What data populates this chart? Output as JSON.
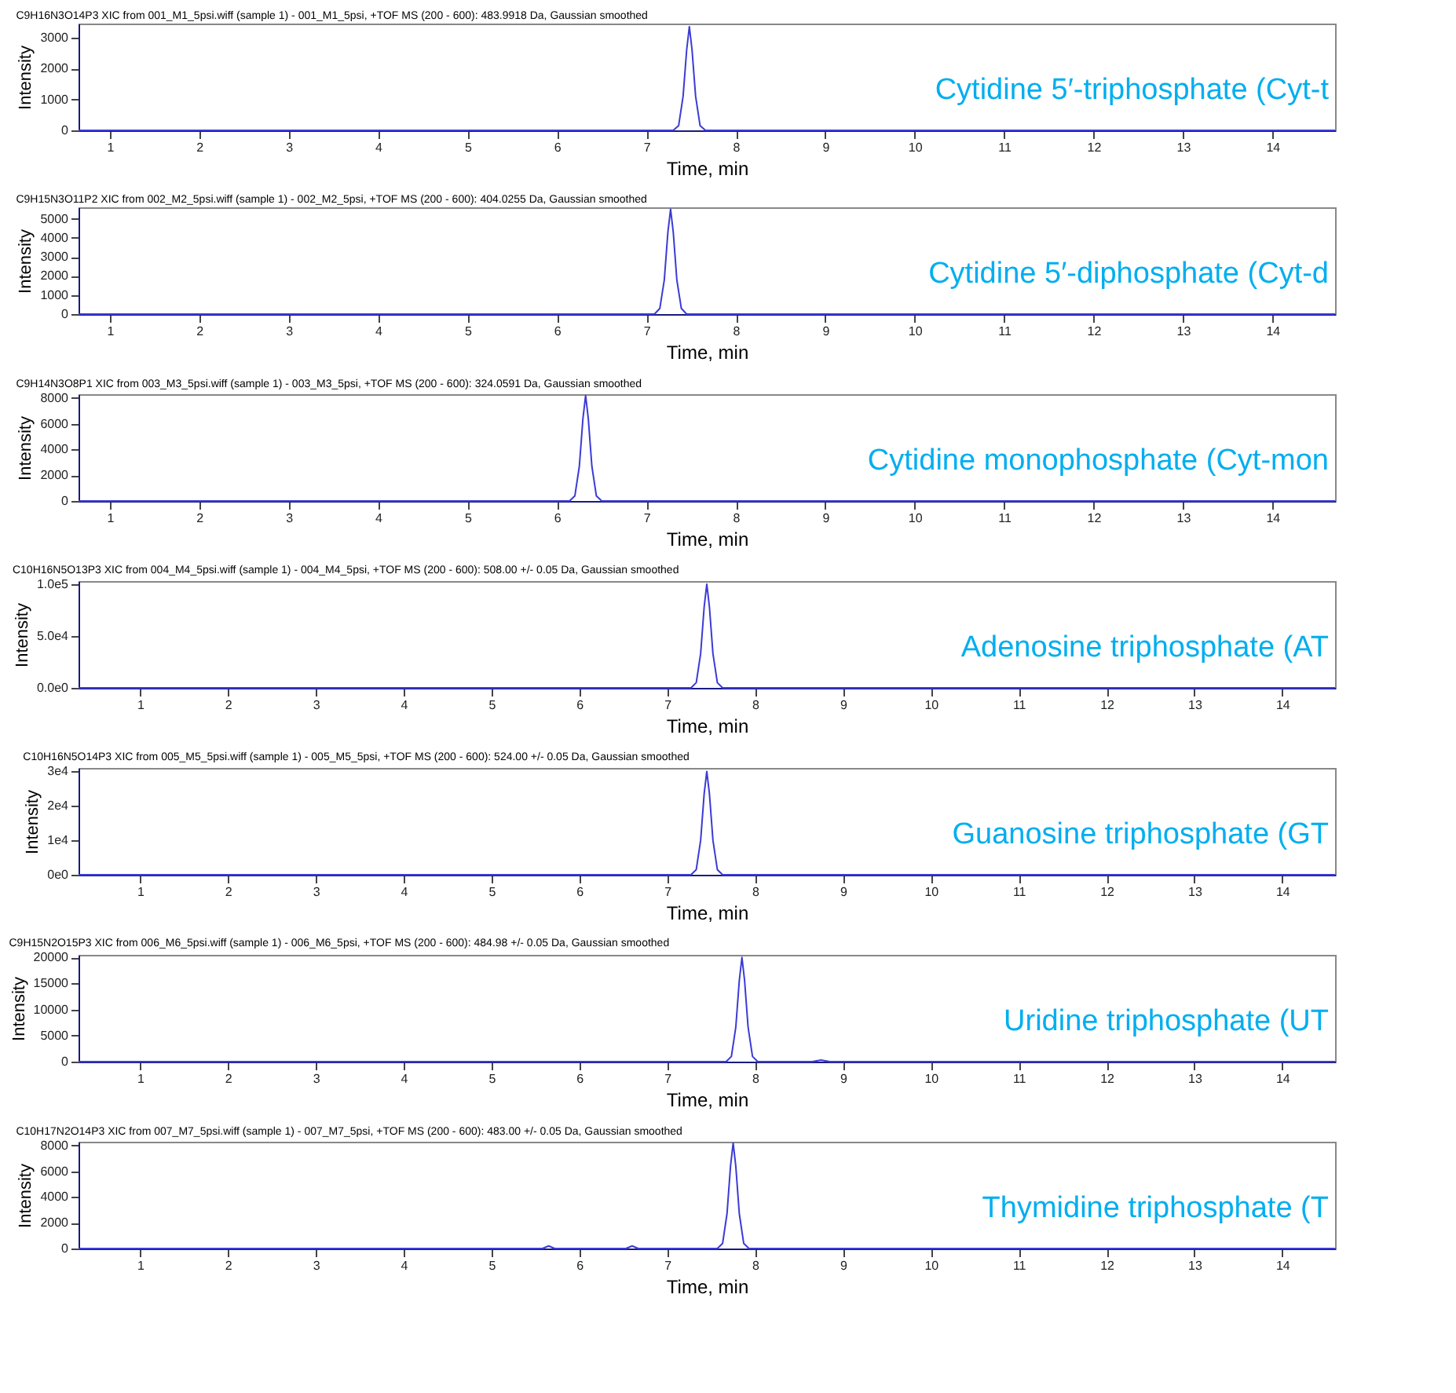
{
  "chart_data": [
    {
      "type": "line",
      "title": "C9H16N3O14P3 XIC from 001_M1_5psi.wiff (sample 1) - 001_M1_5psi, +TOF MS (200 - 600): 483.9918 Da, Gaussian smoothed",
      "xlabel": "Time, min",
      "ylabel": "Intensity",
      "color": "#3b3bd6",
      "x": [
        0.65,
        7.3,
        7.36,
        7.41,
        7.45,
        7.48,
        7.51,
        7.55,
        7.6,
        7.66,
        14.7
      ],
      "values": [
        0,
        0,
        150,
        1100,
        2600,
        3350,
        2600,
        1100,
        150,
        0,
        0
      ],
      "xlim": [
        0.65,
        14.7
      ],
      "ylim": [
        0,
        3450
      ],
      "xticks": [
        1,
        2,
        3,
        4,
        5,
        6,
        7,
        8,
        9,
        10,
        11,
        12,
        13,
        14
      ],
      "yticks": [
        0,
        1000,
        2000,
        3000
      ],
      "annotations": [
        "Cytidine 5′-triphosphate (Cyt-t"
      ]
    },
    {
      "type": "line",
      "title": "C9H15N3O11P2 XIC from 002_M2_5psi.wiff (sample 1) - 002_M2_5psi, +TOF MS (200 - 600): 404.0255 Da, Gaussian smoothed",
      "xlabel": "Time, min",
      "ylabel": "Intensity",
      "color": "#3b3bd6",
      "x": [
        0.65,
        7.09,
        7.15,
        7.2,
        7.24,
        7.27,
        7.3,
        7.34,
        7.39,
        7.45,
        14.7
      ],
      "values": [
        0,
        0,
        300,
        1800,
        4300,
        5500,
        4300,
        1800,
        300,
        0,
        0
      ],
      "xlim": [
        0.65,
        14.7
      ],
      "ylim": [
        0,
        5600
      ],
      "xticks": [
        1,
        2,
        3,
        4,
        5,
        6,
        7,
        8,
        9,
        10,
        11,
        12,
        13,
        14
      ],
      "yticks": [
        0,
        1000,
        2000,
        3000,
        4000,
        5000
      ],
      "annotations": [
        "Cytidine 5′-diphosphate (Cyt-d"
      ]
    },
    {
      "type": "line",
      "title": "C9H14N3O8P1 XIC from 003_M3_5psi.wiff (sample 1) - 003_M3_5psi, +TOF MS (200 - 600): 324.0591 Da, Gaussian smoothed",
      "xlabel": "Time, min",
      "ylabel": "Intensity",
      "color": "#3b3bd6",
      "x": [
        0.65,
        6.14,
        6.2,
        6.25,
        6.29,
        6.32,
        6.35,
        6.39,
        6.44,
        6.5,
        14.7
      ],
      "values": [
        0,
        0,
        400,
        2700,
        6400,
        8200,
        6400,
        2700,
        400,
        0,
        0
      ],
      "xlim": [
        0.65,
        14.7
      ],
      "ylim": [
        0,
        8300
      ],
      "xticks": [
        1,
        2,
        3,
        4,
        5,
        6,
        7,
        8,
        9,
        10,
        11,
        12,
        13,
        14
      ],
      "yticks": [
        0,
        2000,
        4000,
        6000,
        8000
      ],
      "annotations": [
        "Cytidine monophosphate (Cyt-mon"
      ]
    },
    {
      "type": "line",
      "title": "C10H16N5O13P3 XIC from 004_M4_5psi.wiff (sample 1) - 004_M4_5psi, +TOF MS (200 - 600): 508.00 +/- 0.05 Da, Gaussian smoothed",
      "xlabel": "Time, min",
      "ylabel": "Intensity",
      "color": "#3b3bd6",
      "x": [
        0.3,
        7.27,
        7.33,
        7.38,
        7.42,
        7.45,
        7.48,
        7.52,
        7.57,
        7.63,
        14.6
      ],
      "values": [
        0,
        0,
        5000,
        33000,
        78000,
        100000,
        78000,
        33000,
        5000,
        0,
        0
      ],
      "xlim": [
        0.3,
        14.6
      ],
      "ylim": [
        0,
        103000
      ],
      "xticks": [
        1,
        2,
        3,
        4,
        5,
        6,
        7,
        8,
        9,
        10,
        11,
        12,
        13,
        14
      ],
      "yticks": [
        {
          "value": 0,
          "label": "0.0e0"
        },
        {
          "value": 50000,
          "label": "5.0e4"
        },
        {
          "value": 100000,
          "label": "1.0e5"
        }
      ],
      "annotations": [
        "Adenosine triphosphate (AT"
      ]
    },
    {
      "type": "line",
      "title": "C10H16N5O14P3 XIC from 005_M5_5psi.wiff (sample 1) - 005_M5_5psi, +TOF MS (200 - 600): 524.00 +/- 0.05 Da, Gaussian smoothed",
      "xlabel": "Time, min",
      "ylabel": "Intensity",
      "color": "#3b3bd6",
      "x": [
        0.3,
        7.27,
        7.33,
        7.38,
        7.42,
        7.45,
        7.48,
        7.52,
        7.57,
        7.63,
        14.6
      ],
      "values": [
        0,
        0,
        1500,
        10000,
        23500,
        30000,
        23500,
        10000,
        1500,
        0,
        0
      ],
      "xlim": [
        0.3,
        14.6
      ],
      "ylim": [
        0,
        31000
      ],
      "xticks": [
        1,
        2,
        3,
        4,
        5,
        6,
        7,
        8,
        9,
        10,
        11,
        12,
        13,
        14
      ],
      "yticks": [
        {
          "value": 0,
          "label": "0e0"
        },
        {
          "value": 10000,
          "label": "1e4"
        },
        {
          "value": 20000,
          "label": "2e4"
        },
        {
          "value": 30000,
          "label": "3e4"
        }
      ],
      "annotations": [
        "Guanosine triphosphate (GT"
      ]
    },
    {
      "type": "line",
      "title": "C9H15N2O15P3 XIC from 006_M6_5psi.wiff (sample 1) - 006_M6_5psi, +TOF MS (200 - 600): 484.98 +/- 0.05 Da, Gaussian smoothed",
      "xlabel": "Time, min",
      "ylabel": "Intensity",
      "color": "#3b3bd6",
      "x": [
        0.3,
        7.67,
        7.73,
        7.78,
        7.82,
        7.85,
        7.88,
        7.92,
        7.97,
        8.03,
        8.65,
        8.75,
        8.85,
        14.6
      ],
      "values": [
        0,
        0,
        1000,
        6600,
        15600,
        20000,
        15600,
        6600,
        1000,
        0,
        0,
        300,
        0,
        0
      ],
      "xlim": [
        0.3,
        14.6
      ],
      "ylim": [
        0,
        20500
      ],
      "xticks": [
        1,
        2,
        3,
        4,
        5,
        6,
        7,
        8,
        9,
        10,
        11,
        12,
        13,
        14
      ],
      "yticks": [
        0,
        5000,
        10000,
        15000,
        20000
      ],
      "annotations": [
        "Uridine triphosphate (UT"
      ]
    },
    {
      "type": "line",
      "title": "C10H17N2O14P3 XIC from 007_M7_5psi.wiff (sample 1) - 007_M7_5psi, +TOF MS (200 - 600): 483.00 +/- 0.05 Da, Gaussian smoothed",
      "xlabel": "Time, min",
      "ylabel": "Intensity",
      "color": "#3b3bd6",
      "x": [
        0.3,
        5.58,
        5.65,
        5.72,
        6.53,
        6.6,
        6.67,
        7.57,
        7.63,
        7.68,
        7.72,
        7.75,
        7.78,
        7.82,
        7.87,
        7.93,
        14.6
      ],
      "values": [
        0,
        0,
        200,
        0,
        0,
        200,
        0,
        0,
        400,
        2700,
        6400,
        8200,
        6400,
        2700,
        400,
        0,
        0
      ],
      "xlim": [
        0.3,
        14.6
      ],
      "ylim": [
        0,
        8300
      ],
      "xticks": [
        1,
        2,
        3,
        4,
        5,
        6,
        7,
        8,
        9,
        10,
        11,
        12,
        13,
        14
      ],
      "yticks": [
        0,
        2000,
        4000,
        6000,
        8000
      ],
      "annotations": [
        "Thymidine triphosphate (T"
      ]
    }
  ]
}
